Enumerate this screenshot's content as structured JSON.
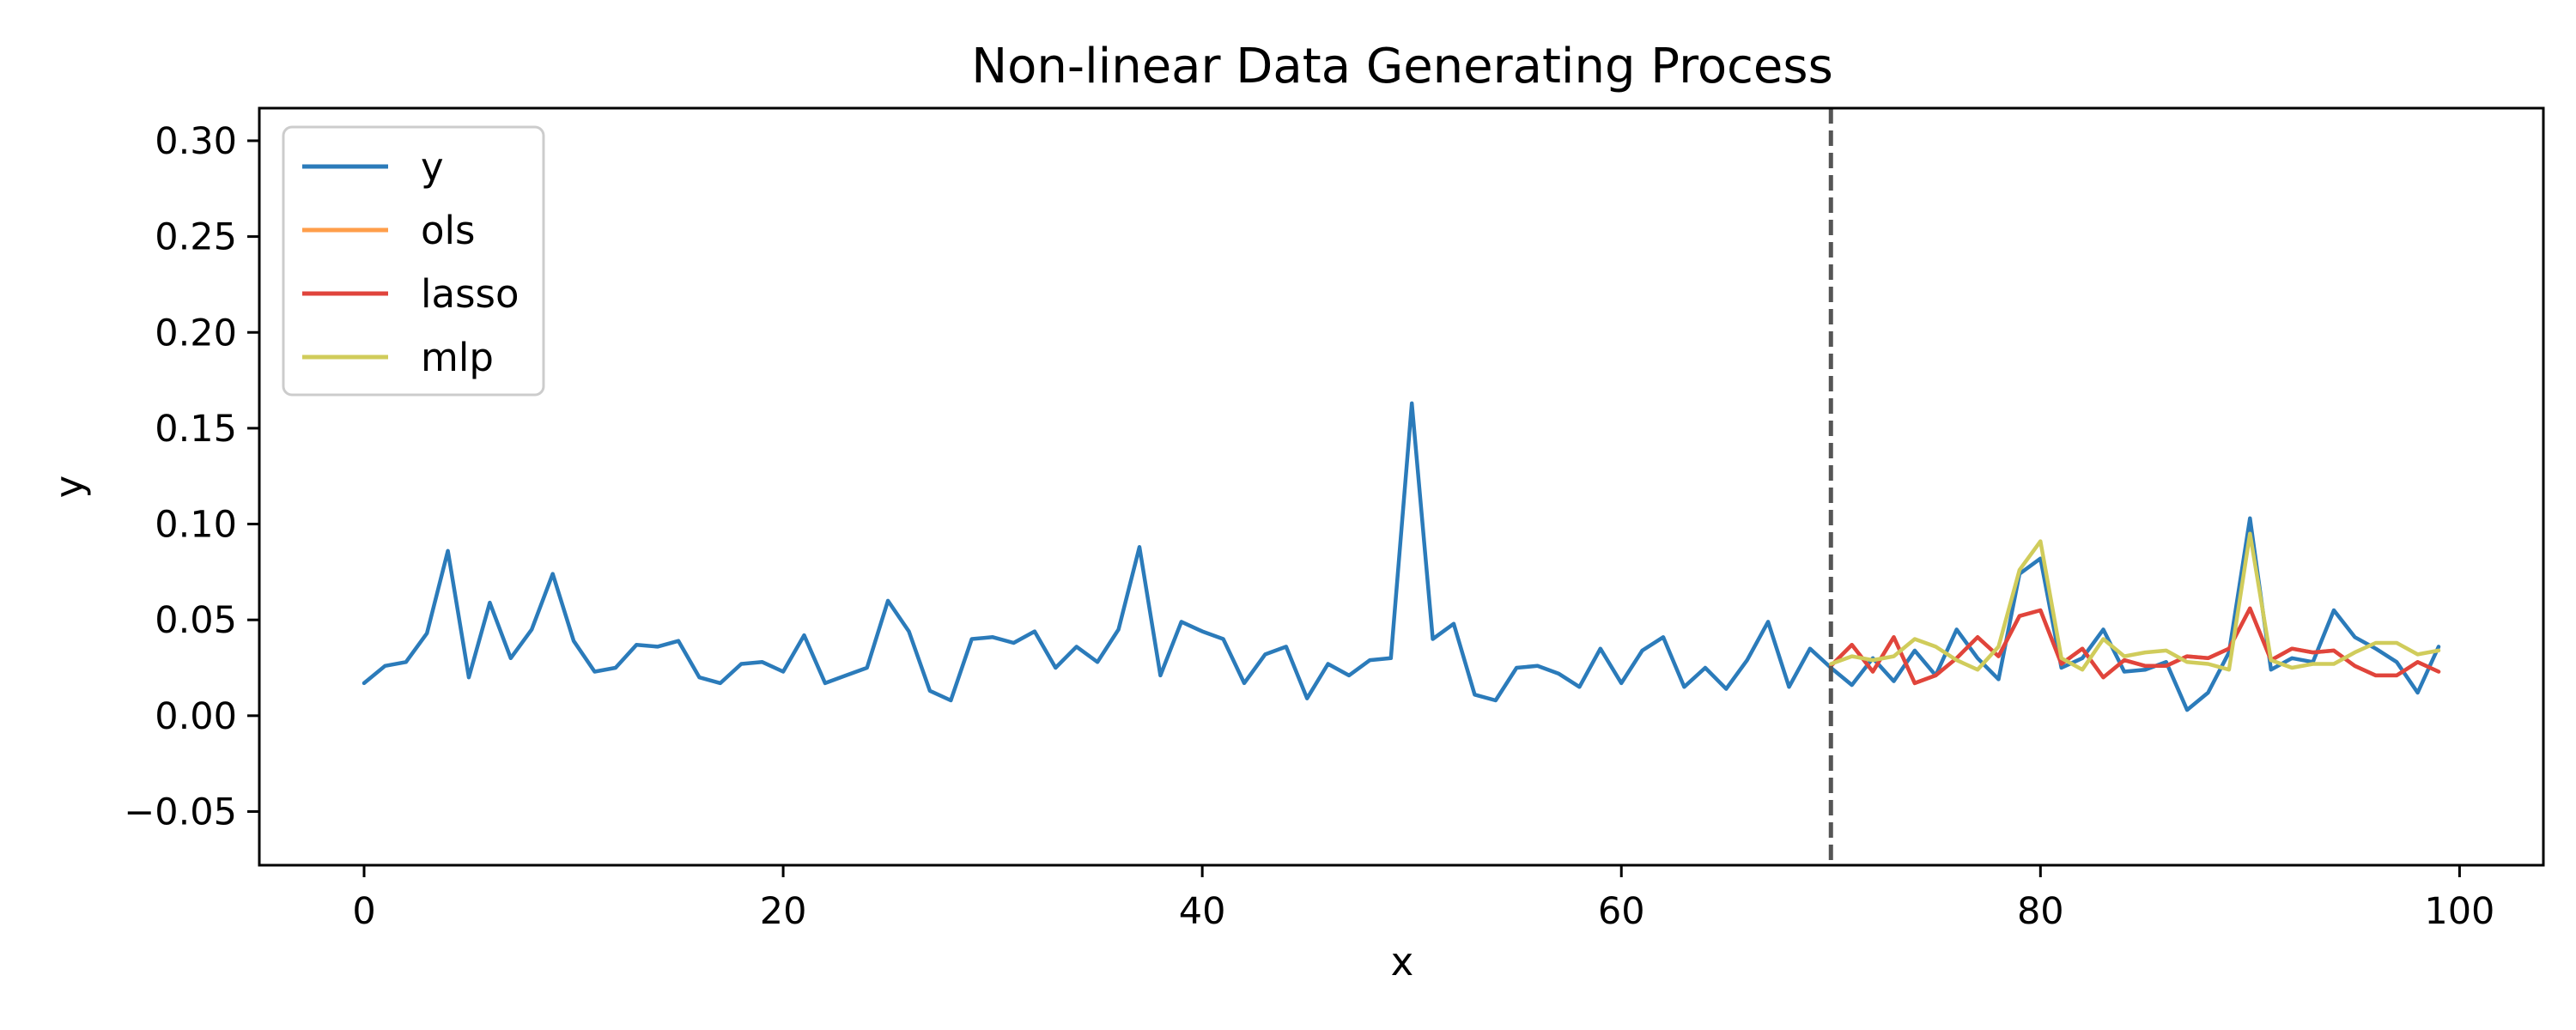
{
  "chart_data": {
    "type": "line",
    "title": "Non-linear Data Generating Process",
    "xlabel": "x",
    "ylabel": "y",
    "xlim": [
      -5,
      104
    ],
    "ylim": [
      -0.078,
      0.317
    ],
    "xticks": [
      0,
      20,
      40,
      60,
      80,
      100
    ],
    "yticks": [
      -0.05,
      0.0,
      0.05,
      0.1,
      0.15,
      0.2,
      0.25,
      0.3
    ],
    "ytick_labels": [
      "−0.05",
      "0.00",
      "0.05",
      "0.10",
      "0.15",
      "0.20",
      "0.25",
      "0.30"
    ],
    "grid": false,
    "legend_position": "top-left",
    "vline": {
      "x": 70,
      "style": "dashed",
      "color": "#555555"
    },
    "series": [
      {
        "name": "y",
        "color": "#2b7bba",
        "x_start": 0,
        "values": [
          0.017,
          0.026,
          0.028,
          0.043,
          0.086,
          0.02,
          0.059,
          0.03,
          0.045,
          0.074,
          0.039,
          0.023,
          0.025,
          0.037,
          0.036,
          0.039,
          0.02,
          0.017,
          0.027,
          0.028,
          0.023,
          0.042,
          0.017,
          0.021,
          0.025,
          0.06,
          0.044,
          0.013,
          0.008,
          0.04,
          0.041,
          0.038,
          0.044,
          0.025,
          0.036,
          0.028,
          0.045,
          0.088,
          0.021,
          0.049,
          0.044,
          0.04,
          0.017,
          0.032,
          0.036,
          0.009,
          0.027,
          0.021,
          0.029,
          0.03,
          0.163,
          0.04,
          0.048,
          0.011,
          0.008,
          0.025,
          0.026,
          0.022,
          0.015,
          0.035,
          0.017,
          0.034,
          0.041,
          0.015,
          0.025,
          0.014,
          0.029,
          0.049,
          0.015,
          0.035,
          0.025,
          0.016,
          0.03,
          0.018,
          0.034,
          0.021,
          0.045,
          0.03,
          0.019,
          0.074,
          0.082,
          0.025,
          0.03,
          0.045,
          0.023,
          0.024,
          0.028,
          0.003,
          0.012,
          0.033,
          0.103,
          0.024,
          0.03,
          0.028,
          0.055,
          0.041,
          0.035,
          0.028,
          0.012,
          0.036
        ]
      },
      {
        "name": "ols",
        "color": "#ff9e4a",
        "x_start": 70,
        "values": [
          0.026,
          0.037,
          0.023,
          0.041,
          0.017,
          0.021,
          0.03,
          0.041,
          0.031,
          0.052,
          0.055,
          0.027,
          0.035,
          0.02,
          0.029,
          0.026,
          0.026,
          0.031,
          0.03,
          0.035,
          0.056,
          0.029,
          0.035,
          0.033,
          0.034,
          0.026,
          0.021,
          0.021,
          0.028,
          0.023
        ]
      },
      {
        "name": "lasso",
        "color": "#e0443c",
        "x_start": 70,
        "values": [
          0.026,
          0.037,
          0.023,
          0.041,
          0.017,
          0.021,
          0.03,
          0.041,
          0.031,
          0.052,
          0.055,
          0.027,
          0.035,
          0.02,
          0.029,
          0.026,
          0.026,
          0.031,
          0.03,
          0.035,
          0.056,
          0.029,
          0.035,
          0.033,
          0.034,
          0.026,
          0.021,
          0.021,
          0.028,
          0.023
        ]
      },
      {
        "name": "mlp",
        "color": "#d0cc5b",
        "x_start": 70,
        "values": [
          0.027,
          0.031,
          0.029,
          0.031,
          0.04,
          0.036,
          0.029,
          0.024,
          0.036,
          0.076,
          0.091,
          0.03,
          0.024,
          0.04,
          0.031,
          0.033,
          0.034,
          0.028,
          0.027,
          0.024,
          0.095,
          0.029,
          0.025,
          0.027,
          0.027,
          0.033,
          0.038,
          0.038,
          0.032,
          0.034
        ]
      }
    ]
  }
}
